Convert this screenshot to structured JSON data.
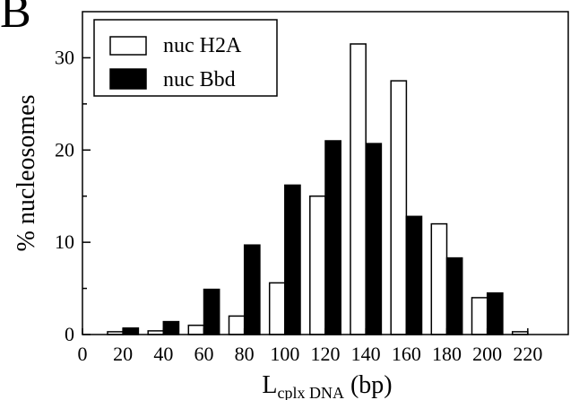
{
  "chart_data": {
    "type": "bar",
    "panel_label": "B",
    "xlabel_main": "L",
    "xlabel_subscript": "cplx DNA",
    "xlabel_suffix": " (bp)",
    "ylabel": "% nucleosomes",
    "x_ticks": [
      "0",
      "20",
      "40",
      "60",
      "80",
      "100",
      "120",
      "140",
      "160",
      "180",
      "200",
      "220"
    ],
    "y_ticks": [
      "0",
      "10",
      "20",
      "30"
    ],
    "xlim": [
      0,
      240
    ],
    "ylim": [
      0,
      35
    ],
    "grid": false,
    "legend_position": "top-left",
    "bin_width": 20,
    "x": [
      20,
      40,
      60,
      80,
      100,
      120,
      140,
      160,
      180,
      200,
      220
    ],
    "series": [
      {
        "name": "nuc H2A",
        "color": "#ffffff",
        "edge": "#000000",
        "values": [
          0.3,
          0.4,
          1.0,
          2.0,
          5.6,
          15.0,
          31.5,
          27.5,
          12.0,
          4.0,
          0.3
        ]
      },
      {
        "name": "nuc Bbd",
        "color": "#000000",
        "edge": "#000000",
        "values": [
          0.7,
          1.4,
          4.9,
          9.7,
          16.2,
          21.0,
          20.7,
          12.8,
          8.3,
          4.5,
          0
        ]
      }
    ]
  }
}
